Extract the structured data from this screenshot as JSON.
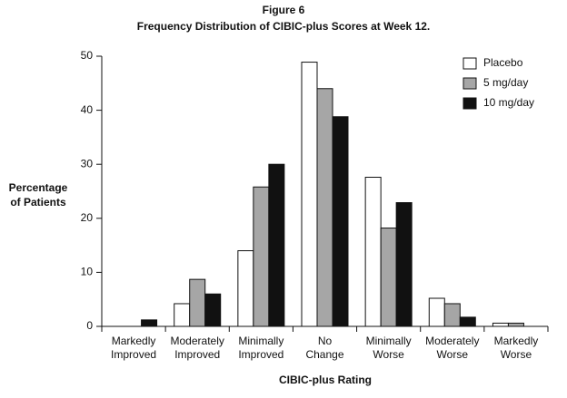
{
  "chart_data": {
    "type": "bar",
    "title": [
      "Figure 6",
      "Frequency Distribution of CIBIC-plus Scores at Week 12."
    ],
    "xlabel": "CIBIC-plus Rating",
    "ylabel": [
      "Percentage",
      "of Patients"
    ],
    "categories": [
      [
        "Markedly",
        "Improved"
      ],
      [
        "Moderately",
        "Improved"
      ],
      [
        "Minimally",
        "Improved"
      ],
      [
        "No",
        "Change"
      ],
      [
        "Minimally",
        "Worse"
      ],
      [
        "Moderately",
        "Worse"
      ],
      [
        "Markedly",
        "Worse"
      ]
    ],
    "series": [
      {
        "name": "Placebo",
        "color": "#ffffff",
        "values": [
          0,
          4.2,
          14,
          48.9,
          27.6,
          5.2,
          0.6
        ]
      },
      {
        "name": "5 mg/day",
        "color": "#a6a6a6",
        "values": [
          0,
          8.7,
          25.8,
          44,
          18.2,
          4.2,
          0.6
        ]
      },
      {
        "name": "10 mg/day",
        "color": "#111111",
        "values": [
          1.2,
          6,
          30,
          38.8,
          22.9,
          1.7,
          0
        ]
      }
    ],
    "ylim": [
      0,
      50
    ],
    "yticks": [
      0,
      10,
      20,
      30,
      40,
      50
    ],
    "legend": "upper right"
  }
}
